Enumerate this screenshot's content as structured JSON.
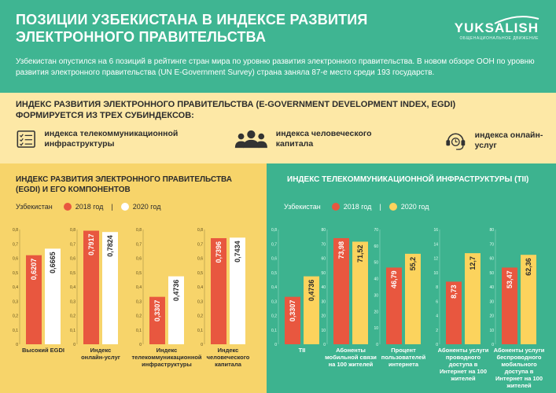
{
  "header": {
    "title": "ПОЗИЦИИ УЗБЕКИСТАНА В ИНДЕКСЕ РАЗВИТИЯ ЭЛЕКТРОННОГО ПРАВИТЕЛЬСТВА",
    "brand": "YUKSALISH",
    "brand_tagline": "ОБЩЕНАЦИОНАЛЬНОЕ ДВИЖЕНИЕ",
    "lead": "Узбекистан опустился на 6 позиций в рейтинге стран мира по уровню развития электронного правительства. В новом обзоре ООН по уровню развития электронного правительства (UN E-Government Survey) страна заняла 87-е место среди 193 государств."
  },
  "subindices": {
    "title": "ИНДЕКС РАЗВИТИЯ ЭЛЕКТРОННОГО ПРАВИТЕЛЬСТВА (E-GOVERNMENT DEVELOPMENT INDEX, EGDI) ФОРМИРУЕТСЯ ИЗ ТРЕХ СУБИНДЕКСОВ:",
    "items": [
      {
        "label": "индекса телекоммуникационной инфраструктуры",
        "icon": "checklist-icon"
      },
      {
        "label": "индекса человеческого капитала",
        "icon": "people-icon"
      },
      {
        "label": "индекса онлайн-услуг",
        "icon": "headset-support-icon"
      }
    ]
  },
  "legend": {
    "country": "Узбекистан",
    "y2018": "2018 год",
    "y2020": "2020 год",
    "sep": "|"
  },
  "colors": {
    "c2018": "#e8573f",
    "c2020_left": "#ffffff",
    "c2020_right": "#fcd35d",
    "left_bg": "#f7d46a",
    "right_bg": "#3db38f"
  },
  "chart_data": [
    {
      "type": "bar",
      "title": "ИНДЕКС РАЗВИТИЯ ЭЛЕКТРОННОГО ПРАВИТЕЛЬСТВА (EGDI) И ЕГО КОМПОНЕНТОВ",
      "yticks": [
        "0",
        "0,1",
        "0,2",
        "0,3",
        "0,4",
        "0,5",
        "0,6",
        "0,7",
        "0,8"
      ],
      "ylim": [
        0,
        0.8
      ],
      "groups": [
        {
          "category": "Высокий EGDI",
          "v2018": 0.6207,
          "v2020": 0.6665,
          "l2018": "0,6207",
          "l2020": "0,6665"
        },
        {
          "category": "Индекс онлайн-услуг",
          "v2018": 0.7917,
          "v2020": 0.7824,
          "l2018": "0,7917",
          "l2020": "0,7824"
        },
        {
          "category": "Индекс телекоммуникационной инфраструктуры",
          "v2018": 0.3307,
          "v2020": 0.4736,
          "l2018": "0,3307",
          "l2020": "0,4736"
        },
        {
          "category": "Индекс человеческого капитала",
          "v2018": 0.7396,
          "v2020": 0.7434,
          "l2018": "0,7396",
          "l2020": "0,7434"
        }
      ]
    },
    {
      "type": "bar",
      "title": "ИНДЕКС ТЕЛЕКОММУНИКАЦИОННОЙ ИНФРАСТРУКТУРЫ (TII)",
      "groups": [
        {
          "category": "TII",
          "v2018": 0.3307,
          "v2020": 0.4736,
          "l2018": "0,3307",
          "l2020": "0,4736",
          "yticks": [
            "0",
            "0,1",
            "0,2",
            "0,3",
            "0,4",
            "0,5",
            "0,6",
            "0,7",
            "0,8"
          ],
          "ymax": 0.8
        },
        {
          "category": "Абоненты мобильной связи на 100 жителей",
          "v2018": 73.98,
          "v2020": 71.52,
          "l2018": "73,98",
          "l2020": "71,52",
          "yticks": [
            "0",
            "10",
            "20",
            "30",
            "40",
            "50",
            "60",
            "70",
            "80"
          ],
          "ymax": 80
        },
        {
          "category": "Процент пользователей интернета",
          "v2018": 46.79,
          "v2020": 55.2,
          "l2018": "46,79",
          "l2020": "55,2",
          "yticks": [
            "0",
            "10",
            "20",
            "30",
            "40",
            "50",
            "60",
            "70"
          ],
          "ymax": 70
        },
        {
          "category": "Абоненты услуги проводного доступа в Интернет на 100 жителей",
          "v2018": 8.73,
          "v2020": 12.7,
          "l2018": "8,73",
          "l2020": "12,7",
          "yticks": [
            "0",
            "2",
            "4",
            "6",
            "8",
            "10",
            "12",
            "14",
            "16"
          ],
          "ymax": 16
        },
        {
          "category": "Абоненты услуги беспроводного мобильного доступа в Интернет на 100 жителей",
          "v2018": 53.47,
          "v2020": 62.36,
          "l2018": "53,47",
          "l2020": "62,36",
          "yticks": [
            "0",
            "10",
            "20",
            "30",
            "40",
            "50",
            "60",
            "70",
            "80"
          ],
          "ymax": 80
        }
      ]
    }
  ]
}
